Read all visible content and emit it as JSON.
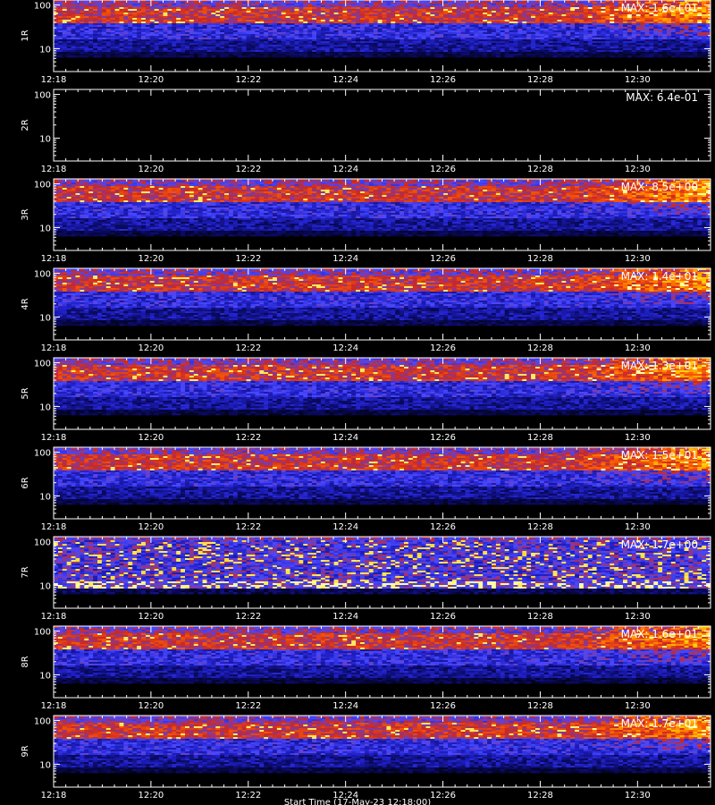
{
  "figure": {
    "background": "#000000",
    "foreground": "#ffffff",
    "x_axis_title": "Start Time (17-May-23 12:18:00)"
  },
  "chart_data": {
    "type": "heatmap",
    "colormap": [
      "#000000",
      "#0a0a60",
      "#2020c8",
      "#4848ff",
      "#c82828",
      "#ff6000",
      "#ffc800",
      "#ffffa0"
    ],
    "x_tick_labels": [
      "12:18",
      "12:20",
      "12:22",
      "12:24",
      "12:26",
      "12:28",
      "12:30"
    ],
    "x_range_minutes": [
      0,
      13.5
    ],
    "y_scale": "log",
    "y_tick_labels": [
      "100",
      "10"
    ],
    "y_range": [
      3,
      130
    ],
    "panels": [
      {
        "ylabel": "1R",
        "max_label": "MAX: 1.6e+01",
        "profile": "normal"
      },
      {
        "ylabel": "2R",
        "max_label": "MAX: 6.4e-01",
        "profile": "empty"
      },
      {
        "ylabel": "3R",
        "max_label": "MAX: 8.5e+00",
        "profile": "normal"
      },
      {
        "ylabel": "4R",
        "max_label": "MAX: 1.4e+01",
        "profile": "normal"
      },
      {
        "ylabel": "5R",
        "max_label": "MAX: 1.3e+01",
        "profile": "normal"
      },
      {
        "ylabel": "6R",
        "max_label": "MAX: 1.5e+01",
        "profile": "normal"
      },
      {
        "ylabel": "7R",
        "max_label": "MAX: 1.7e+00",
        "profile": "speckled"
      },
      {
        "ylabel": "8R",
        "max_label": "MAX: 1.6e+01",
        "profile": "normal"
      },
      {
        "ylabel": "9R",
        "max_label": "MAX: 1.7e+01",
        "profile": "normal"
      }
    ]
  }
}
